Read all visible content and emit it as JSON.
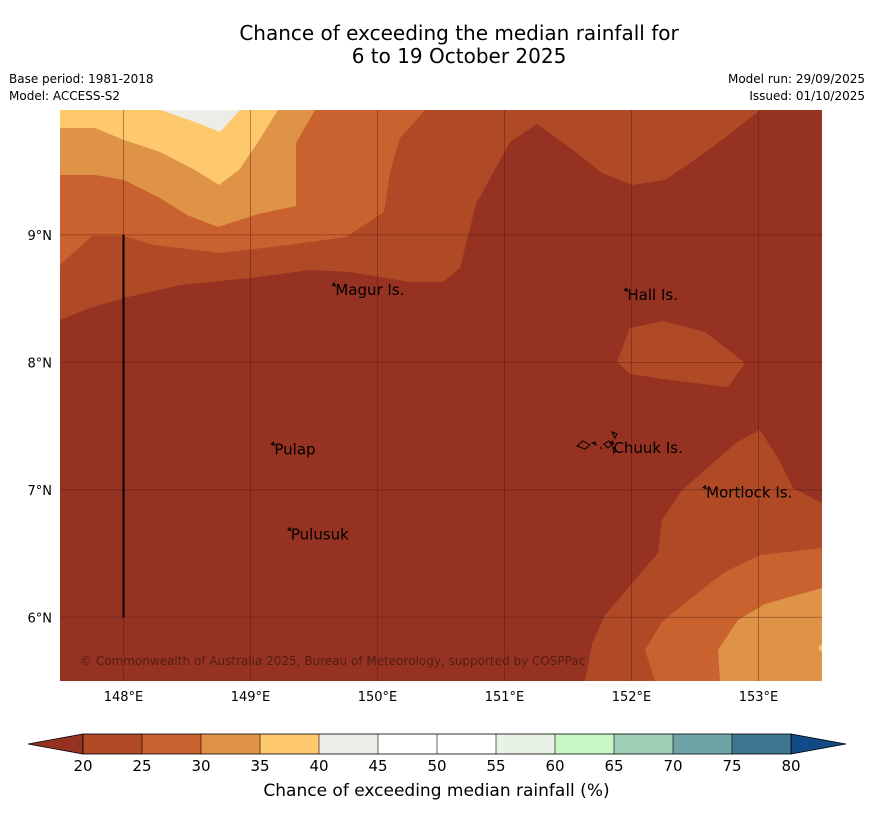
{
  "title": {
    "line1": "Chance of exceeding the median rainfall for",
    "line2": "6 to 19 October 2025"
  },
  "meta": {
    "base_period": "Base period: 1981-2018",
    "model": "Model: ACCESS-S2",
    "model_run": "Model run: 29/09/2025",
    "issued": "Issued: 01/10/2025"
  },
  "map": {
    "lon_labels": [
      "148°E",
      "149°E",
      "150°E",
      "151°E",
      "152°E",
      "153°E"
    ],
    "lon_values": [
      148,
      149,
      150,
      151,
      152,
      153
    ],
    "lat_labels": [
      "9°N",
      "8°N",
      "7°N",
      "6°N"
    ],
    "lat_values": [
      9,
      8,
      7,
      6
    ],
    "extent": {
      "lon_min": 147.5,
      "lon_max": 153.5,
      "lat_min": 5.5,
      "lat_max": 9.98
    },
    "meridian_line": {
      "lon": 148,
      "lat_from": 6,
      "lat_to": 9
    },
    "places": [
      {
        "name": "Magur Is.",
        "lon": 149.66,
        "lat": 8.56
      },
      {
        "name": "Hall Is.",
        "lon": 151.96,
        "lat": 8.52
      },
      {
        "name": "Pulap",
        "lon": 149.18,
        "lat": 7.31
      },
      {
        "name": "Chuuk Is.",
        "lon": 151.85,
        "lat": 7.32
      },
      {
        "name": "Mortlock Is.",
        "lon": 152.58,
        "lat": 6.97
      },
      {
        "name": "Pulusuk",
        "lon": 149.31,
        "lat": 6.64
      }
    ],
    "copyright": "© Commonwealth of Australia 2025, Bureau of Meteorology, supported by COSPPac"
  },
  "colorbar": {
    "ticks": [
      "20",
      "25",
      "30",
      "35",
      "40",
      "45",
      "50",
      "55",
      "60",
      "65",
      "70",
      "75",
      "80"
    ],
    "colors": [
      "#b04a26",
      "#c9622f",
      "#df9346",
      "#fdc96c",
      "#eeece7",
      "#ffffff",
      "#ffffff",
      "#e8f3e5",
      "#c9f7c5",
      "#9dcfb6",
      "#6ea4a8",
      "#40758f"
    ],
    "under_color": "#953222",
    "over_color": "#114a86",
    "label": "Chance of exceeding median rainfall (%)"
  },
  "regions": [
    {
      "level": "20-25",
      "color": "#b04a26"
    },
    {
      "level": "25-30",
      "color": "#c9622f"
    },
    {
      "level": "30-35",
      "color": "#df9346"
    },
    {
      "level": "35-40",
      "color": "#fdc96c"
    },
    {
      "level": "40-45",
      "color": "#eeece7"
    },
    {
      "level": "<20",
      "color": "#953222"
    }
  ]
}
